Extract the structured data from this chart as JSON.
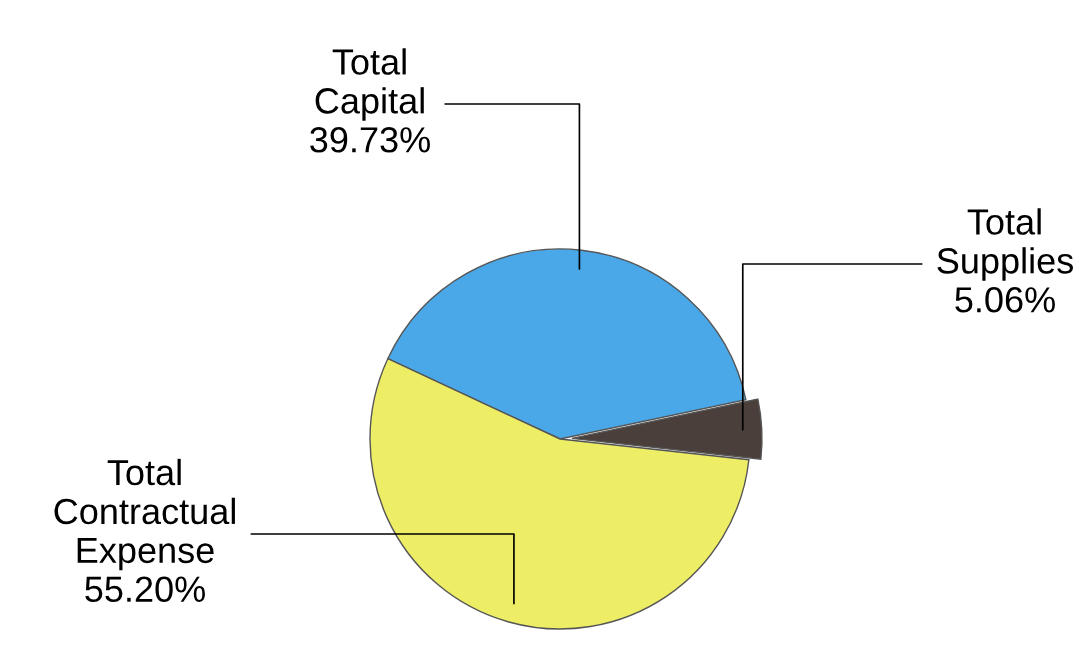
{
  "chart_data": {
    "type": "pie",
    "categories": [
      "Total\nCapital",
      "Total\nSupplies",
      "Total\nContractual\nExpense"
    ],
    "values": [
      39.73,
      5.06,
      55.2
    ],
    "value_labels": [
      "39.73%",
      "5.06%",
      "55.20%"
    ],
    "colors": [
      "#4aa8e8",
      "#4a3f3a",
      "#eeee66"
    ],
    "legend": false
  }
}
